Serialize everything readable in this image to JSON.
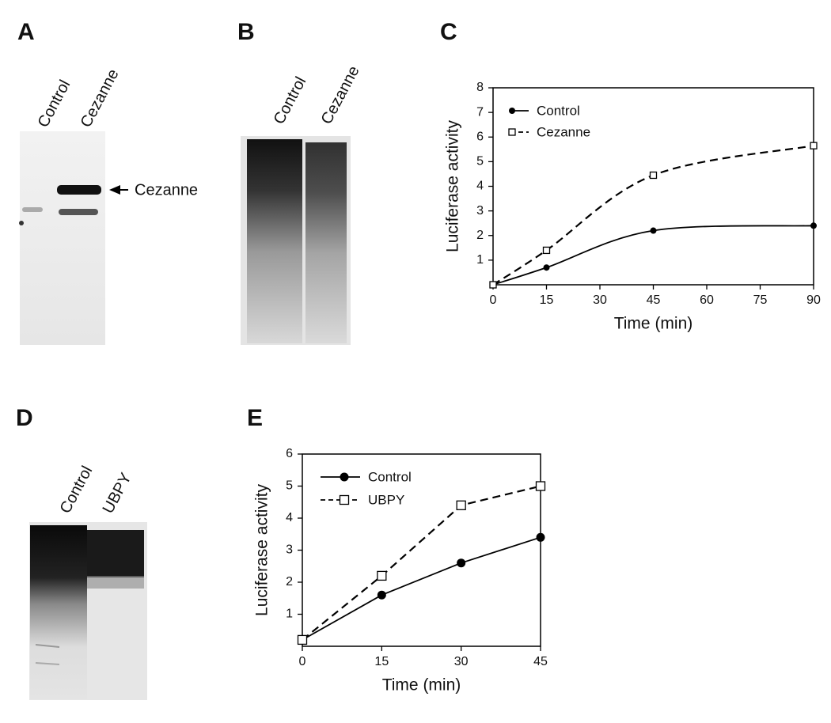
{
  "panel_labels": [
    "A",
    "B",
    "C",
    "D",
    "E"
  ],
  "blots": [
    {
      "lanes": [
        "Control",
        "Cezanne"
      ],
      "band_label": "Cezanne"
    },
    {
      "lanes": [
        "Control",
        "Cezanne"
      ]
    },
    {
      "lanes": [
        "Control",
        "UBPY"
      ]
    }
  ],
  "chart_data": [
    {
      "type": "line",
      "xlabel": "Time (min)",
      "ylabel": "Luciferase activity",
      "x": [
        0,
        15,
        45,
        90
      ],
      "series": [
        {
          "name": "Control",
          "color": "#000000",
          "marker": "circle",
          "dashed": false,
          "values": [
            0,
            0.7,
            2.2,
            2.4
          ]
        },
        {
          "name": "Cezanne",
          "color": "#000000",
          "marker": "square",
          "dashed": true,
          "values": [
            0,
            1.4,
            4.45,
            5.65
          ]
        }
      ],
      "xlim": [
        0,
        90
      ],
      "ylim": [
        0,
        8
      ],
      "xticks": [
        0,
        15,
        30,
        45,
        60,
        75,
        90
      ],
      "yticks": [
        1,
        2,
        3,
        4,
        5,
        6,
        7,
        8
      ],
      "smooth": true,
      "legend": "upper left"
    },
    {
      "type": "line",
      "xlabel": "Time (min)",
      "ylabel": "Luciferase activity",
      "x": [
        0,
        15,
        30,
        45
      ],
      "series": [
        {
          "name": "Control",
          "color": "#000000",
          "marker": "circle",
          "dashed": false,
          "values": [
            0.2,
            1.6,
            2.6,
            3.4
          ]
        },
        {
          "name": "UBPY",
          "color": "#000000",
          "marker": "square",
          "dashed": true,
          "values": [
            0.2,
            2.2,
            4.4,
            5.0
          ]
        }
      ],
      "xlim": [
        0,
        45
      ],
      "ylim": [
        0,
        6
      ],
      "xticks": [
        0,
        15,
        30,
        45
      ],
      "yticks": [
        1,
        2,
        3,
        4,
        5,
        6
      ],
      "smooth": false,
      "legend": "upper left"
    }
  ]
}
